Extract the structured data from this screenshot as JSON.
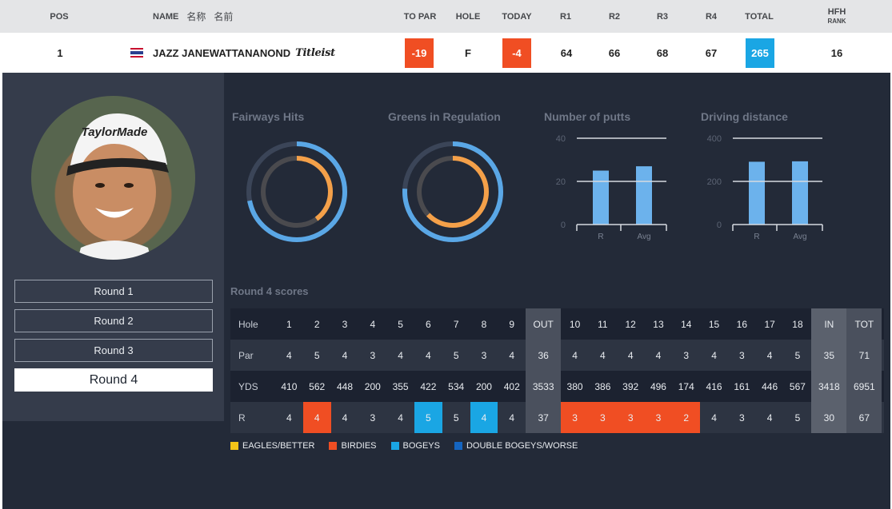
{
  "header": {
    "pos": "POS",
    "name": "NAME",
    "name_zh": "名称",
    "name_ja": "名前",
    "to_par": "TO PAR",
    "hole": "HOLE",
    "today": "TODAY",
    "r1": "R1",
    "r2": "R2",
    "r3": "R3",
    "r4": "R4",
    "total": "TOTAL",
    "hfh": "HFH",
    "rank": "RANK"
  },
  "player": {
    "pos": "1",
    "name": "JAZZ JANEWATTANANOND",
    "sponsor": "Titleist",
    "to_par": "-19",
    "hole": "F",
    "today": "-4",
    "r1": "64",
    "r2": "66",
    "r3": "68",
    "r4": "67",
    "total": "265",
    "hfh_rank": "16",
    "cap_brand": "TaylorMade"
  },
  "colors": {
    "header_bg": "#e4e5e7",
    "panel_bg": "#232a38",
    "left_col_bg": "#353c4b",
    "orange": "#f04e23",
    "blue": "#1aa6e4",
    "ring_orange": "#f4a049",
    "ring_blue": "#5aa7e6",
    "bar_blue": "#6cb2ec",
    "eagle": "#f5c518",
    "double_bogey": "#1565c0"
  },
  "rounds": [
    {
      "label": "Round 1"
    },
    {
      "label": "Round 2"
    },
    {
      "label": "Round 3"
    },
    {
      "label": "Round 4",
      "active": true
    }
  ],
  "stats": {
    "fairways": {
      "title": "Fairways Hits",
      "player_pct": 0.4,
      "avg_pct": 0.72
    },
    "greens": {
      "title": "Greens in Regulation",
      "player_pct": 0.63,
      "avg_pct": 0.76
    },
    "putts": {
      "title": "Number of putts",
      "ticks": [
        "40",
        "20",
        "0"
      ],
      "ymax": 40,
      "categories": [
        "R",
        "Avg"
      ],
      "values": [
        25,
        27
      ]
    },
    "driving": {
      "title": "Driving distance",
      "ticks": [
        "400",
        "200",
        "0"
      ],
      "ymax": 400,
      "categories": [
        "R",
        "Avg"
      ],
      "values": [
        291,
        293
      ]
    }
  },
  "scores": {
    "title": "Round 4 scores",
    "labels": {
      "hole": "Hole",
      "par": "Par",
      "yds": "YDS",
      "r": "R"
    },
    "out": "OUT",
    "in": "IN",
    "tot": "TOT",
    "front_holes": [
      "1",
      "2",
      "3",
      "4",
      "5",
      "6",
      "7",
      "8",
      "9"
    ],
    "back_holes": [
      "10",
      "11",
      "12",
      "13",
      "14",
      "15",
      "16",
      "17",
      "18"
    ],
    "par_front": [
      "4",
      "5",
      "4",
      "3",
      "4",
      "4",
      "5",
      "3",
      "4"
    ],
    "par_out": "36",
    "par_back": [
      "4",
      "4",
      "4",
      "4",
      "3",
      "4",
      "3",
      "4",
      "5"
    ],
    "par_in": "35",
    "par_tot": "71",
    "yds_front": [
      "410",
      "562",
      "448",
      "200",
      "355",
      "422",
      "534",
      "200",
      "402"
    ],
    "yds_out": "3533",
    "yds_back": [
      "380",
      "386",
      "392",
      "496",
      "174",
      "416",
      "161",
      "446",
      "567"
    ],
    "yds_in": "3418",
    "yds_tot": "6951",
    "r_front": [
      "4",
      "4",
      "4",
      "3",
      "4",
      "5",
      "5",
      "4",
      "4"
    ],
    "r_out": "37",
    "r_back": [
      "3",
      "3",
      "3",
      "3",
      "2",
      "4",
      "3",
      "4",
      "5"
    ],
    "r_in": "30",
    "r_tot": "67",
    "r_front_status": [
      "",
      "birdie",
      "",
      "",
      "",
      "bogey",
      "",
      "bogey",
      ""
    ],
    "r_back_status": [
      "birdie",
      "birdie",
      "birdie",
      "birdie",
      "birdie",
      "",
      "",
      "",
      ""
    ]
  },
  "legend": [
    {
      "label": "EAGLES/BETTER",
      "color": "#f5c518"
    },
    {
      "label": "BIRDIES",
      "color": "#f04e23"
    },
    {
      "label": "BOGEYS",
      "color": "#1aa6e4"
    },
    {
      "label": "DOUBLE BOGEYS/WORSE",
      "color": "#1565c0"
    }
  ]
}
